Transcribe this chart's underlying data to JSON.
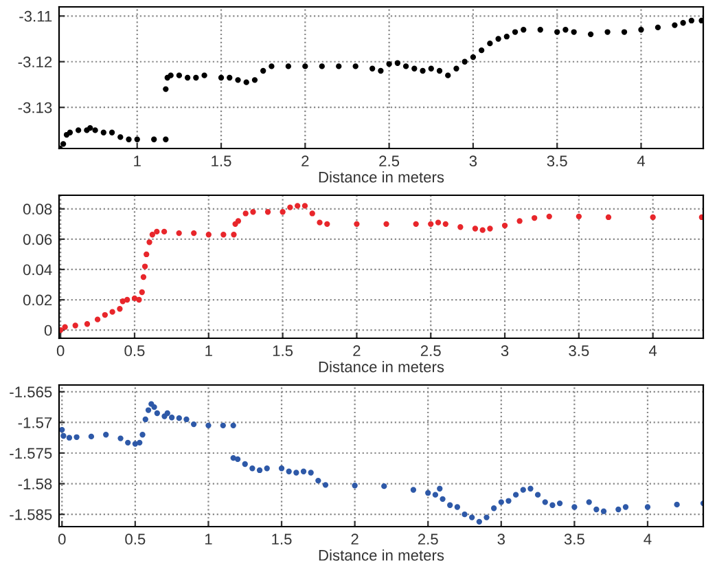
{
  "chart_data": [
    {
      "type": "scatter",
      "xlabel": "Distance in meters",
      "marker": "circle",
      "grid": true,
      "xlim": [
        0.535,
        4.37
      ],
      "ylim": [
        -3.139,
        -3.108
      ],
      "xticks": [
        1,
        1.5,
        2,
        2.5,
        3,
        3.5,
        4
      ],
      "yticks": [
        -3.13,
        -3.12,
        -3.11
      ],
      "series": [
        {
          "color": "#000000",
          "x": [
            0.54,
            0.56,
            0.58,
            0.6,
            0.65,
            0.7,
            0.72,
            0.75,
            0.8,
            0.85,
            0.9,
            0.95,
            1.0,
            1.1,
            1.17,
            1.17,
            1.18,
            1.2,
            1.25,
            1.3,
            1.35,
            1.4,
            1.5,
            1.55,
            1.6,
            1.65,
            1.7,
            1.75,
            1.8,
            1.9,
            2.0,
            2.1,
            2.2,
            2.3,
            2.4,
            2.45,
            2.5,
            2.55,
            2.6,
            2.65,
            2.7,
            2.75,
            2.8,
            2.85,
            2.9,
            2.95,
            3.0,
            3.05,
            3.1,
            3.15,
            3.2,
            3.25,
            3.3,
            3.4,
            3.5,
            3.55,
            3.6,
            3.7,
            3.8,
            3.9,
            4.0,
            4.1,
            4.2,
            4.25,
            4.3,
            4.36
          ],
          "values": [
            -3.139,
            -3.138,
            -3.136,
            -3.1355,
            -3.135,
            -3.135,
            -3.1345,
            -3.135,
            -3.1355,
            -3.1355,
            -3.1365,
            -3.137,
            -3.137,
            -3.137,
            -3.137,
            -3.126,
            -3.1235,
            -3.123,
            -3.123,
            -3.1235,
            -3.1235,
            -3.123,
            -3.1235,
            -3.1235,
            -3.124,
            -3.1245,
            -3.124,
            -3.122,
            -3.121,
            -3.121,
            -3.121,
            -3.121,
            -3.121,
            -3.121,
            -3.1215,
            -3.122,
            -3.1205,
            -3.1203,
            -3.121,
            -3.1215,
            -3.122,
            -3.1215,
            -3.122,
            -3.123,
            -3.1215,
            -3.12,
            -3.119,
            -3.1175,
            -3.116,
            -3.115,
            -3.1145,
            -3.1135,
            -3.113,
            -3.113,
            -3.1135,
            -3.113,
            -3.1135,
            -3.114,
            -3.1135,
            -3.1135,
            -3.113,
            -3.1125,
            -3.112,
            -3.1115,
            -3.111,
            -3.111
          ]
        }
      ]
    },
    {
      "type": "scatter",
      "xlabel": "Distance in meters",
      "marker": "circle",
      "grid": true,
      "xlim": [
        -0.01,
        4.34
      ],
      "ylim": [
        -0.0054,
        0.089
      ],
      "xticks": [
        0,
        0.5,
        1,
        1.5,
        2,
        2.5,
        3,
        3.5,
        4
      ],
      "yticks": [
        0,
        0.02,
        0.04,
        0.06,
        0.08
      ],
      "series": [
        {
          "color": "#e8262b",
          "x": [
            0,
            0.03,
            0.1,
            0.18,
            0.25,
            0.3,
            0.35,
            0.4,
            0.42,
            0.45,
            0.5,
            0.53,
            0.55,
            0.56,
            0.57,
            0.58,
            0.6,
            0.62,
            0.65,
            0.7,
            0.8,
            0.9,
            1.0,
            1.1,
            1.17,
            1.18,
            1.2,
            1.25,
            1.3,
            1.4,
            1.5,
            1.55,
            1.6,
            1.65,
            1.7,
            1.75,
            1.8,
            2.0,
            2.2,
            2.4,
            2.5,
            2.55,
            2.6,
            2.7,
            2.8,
            2.85,
            2.9,
            3.0,
            3.1,
            3.2,
            3.3,
            3.5,
            3.7,
            4.0,
            4.33
          ],
          "values": [
            0,
            0.002,
            0.003,
            0.004,
            0.007,
            0.01,
            0.012,
            0.014,
            0.019,
            0.02,
            0.021,
            0.02,
            0.025,
            0.035,
            0.042,
            0.05,
            0.058,
            0.063,
            0.065,
            0.065,
            0.064,
            0.064,
            0.063,
            0.063,
            0.063,
            0.07,
            0.072,
            0.077,
            0.078,
            0.078,
            0.078,
            0.081,
            0.082,
            0.082,
            0.077,
            0.071,
            0.07,
            0.07,
            0.07,
            0.07,
            0.07,
            0.071,
            0.07,
            0.068,
            0.067,
            0.066,
            0.067,
            0.069,
            0.072,
            0.074,
            0.075,
            0.075,
            0.0745,
            0.0745,
            0.0745
          ]
        }
      ]
    },
    {
      "type": "scatter",
      "xlabel": "Distance in meters",
      "marker": "circle",
      "grid": true,
      "xlim": [
        -0.02,
        4.38
      ],
      "ylim": [
        -1.587,
        -1.5639
      ],
      "xticks": [
        0,
        0.5,
        1,
        1.5,
        2,
        2.5,
        3,
        3.5,
        4
      ],
      "yticks": [
        -1.585,
        -1.58,
        -1.575,
        -1.57,
        -1.565
      ],
      "series": [
        {
          "color": "#2e59a8",
          "x": [
            0,
            0.01,
            0.05,
            0.1,
            0.2,
            0.3,
            0.4,
            0.45,
            0.5,
            0.53,
            0.55,
            0.57,
            0.59,
            0.61,
            0.63,
            0.65,
            0.7,
            0.72,
            0.75,
            0.8,
            0.85,
            0.9,
            1.0,
            1.1,
            1.17,
            1.17,
            1.2,
            1.25,
            1.3,
            1.35,
            1.4,
            1.5,
            1.55,
            1.6,
            1.65,
            1.7,
            1.75,
            1.8,
            2.0,
            2.2,
            2.4,
            2.5,
            2.55,
            2.58,
            2.6,
            2.65,
            2.7,
            2.75,
            2.8,
            2.85,
            2.9,
            2.95,
            3.0,
            3.05,
            3.1,
            3.15,
            3.2,
            3.25,
            3.3,
            3.35,
            3.4,
            3.5,
            3.6,
            3.65,
            3.7,
            3.8,
            3.85,
            4.0,
            4.2,
            4.38
          ],
          "values": [
            -1.5712,
            -1.5722,
            -1.5725,
            -1.5724,
            -1.5723,
            -1.572,
            -1.5726,
            -1.5733,
            -1.5735,
            -1.5733,
            -1.572,
            -1.5695,
            -1.568,
            -1.567,
            -1.5675,
            -1.5685,
            -1.569,
            -1.5685,
            -1.5692,
            -1.5693,
            -1.5695,
            -1.5703,
            -1.5705,
            -1.5705,
            -1.5705,
            -1.5758,
            -1.576,
            -1.5768,
            -1.5775,
            -1.5778,
            -1.5775,
            -1.5775,
            -1.578,
            -1.5782,
            -1.578,
            -1.5782,
            -1.5795,
            -1.5802,
            -1.5803,
            -1.5804,
            -1.581,
            -1.5815,
            -1.5818,
            -1.5808,
            -1.5825,
            -1.5835,
            -1.5838,
            -1.585,
            -1.5855,
            -1.5862,
            -1.5855,
            -1.584,
            -1.583,
            -1.5828,
            -1.5818,
            -1.581,
            -1.5808,
            -1.5818,
            -1.583,
            -1.5835,
            -1.5832,
            -1.5838,
            -1.583,
            -1.5842,
            -1.5845,
            -1.5842,
            -1.5838,
            -1.5838,
            -1.5834,
            -1.5832
          ]
        }
      ]
    }
  ]
}
